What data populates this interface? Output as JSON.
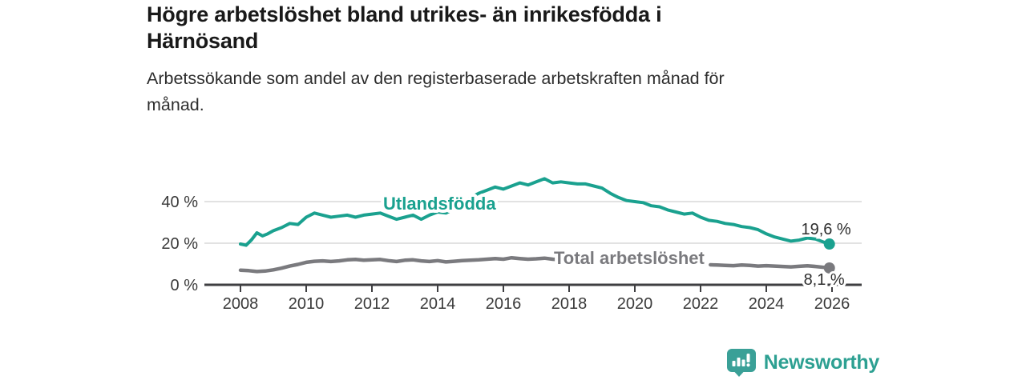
{
  "header": {
    "title_lines": [
      "Högre arbetslöshet bland utrikes- än inrikesfödda i",
      "Härnösand"
    ],
    "subtitle_lines": [
      "Arbetssökande som andel av den registerbaserade arbetskraften månad för",
      "månad."
    ]
  },
  "chart_data": {
    "type": "line",
    "title": "Högre arbetslöshet bland utrikes- än inrikesfödda i Härnösand",
    "subtitle": "Arbetssökande som andel av den registerbaserade arbetskraften månad för månad.",
    "unit": "%",
    "xlim": [
      2006.9,
      2026.9
    ],
    "ylim": [
      0,
      55
    ],
    "grid": "horizontal",
    "legend_position": "inline-labels",
    "x_ticks": [
      "2008",
      "2010",
      "2012",
      "2014",
      "2016",
      "2018",
      "2020",
      "2022",
      "2024",
      "2026"
    ],
    "y_ticks": [
      {
        "value": 0,
        "label": "0 %"
      },
      {
        "value": 20,
        "label": "20 %"
      },
      {
        "value": 40,
        "label": "40 %"
      }
    ],
    "colors": {
      "foreign_born": "#1aa18f",
      "total": "#7a7a7e",
      "grid": "#d8d8d8",
      "axis": "#3f3f42",
      "tick_text": "#3a3a3a",
      "value_text": "#2e2e2e"
    },
    "series": [
      {
        "name": "Utlandsfödda",
        "color": "#1aa18f",
        "end_label": "19,6 %",
        "end_value": 19.6,
        "segments": [
          [
            [
              2008.0,
              19.6
            ],
            [
              2008.17,
              19.0
            ],
            [
              2008.33,
              21.5
            ],
            [
              2008.5,
              25.0
            ],
            [
              2008.67,
              23.5
            ],
            [
              2008.83,
              24.5
            ],
            [
              2009.0,
              26.0
            ],
            [
              2009.25,
              27.5
            ],
            [
              2009.5,
              29.5
            ],
            [
              2009.75,
              29.0
            ],
            [
              2010.0,
              32.5
            ],
            [
              2010.25,
              34.5
            ],
            [
              2010.5,
              33.5
            ],
            [
              2010.75,
              32.5
            ],
            [
              2011.0,
              33.0
            ],
            [
              2011.25,
              33.5
            ],
            [
              2011.5,
              32.5
            ],
            [
              2011.75,
              33.5
            ],
            [
              2012.0,
              34.0
            ],
            [
              2012.25,
              34.5
            ],
            [
              2012.5,
              33.0
            ],
            [
              2012.75,
              31.5
            ],
            [
              2013.0,
              32.5
            ],
            [
              2013.25,
              33.5
            ],
            [
              2013.5,
              31.5
            ],
            [
              2013.75,
              33.5
            ],
            [
              2014.0,
              35.0
            ],
            [
              2014.25,
              34.5
            ],
            [
              2014.5,
              36.5
            ],
            [
              2014.75,
              39.5
            ],
            [
              2015.0,
              42.0
            ],
            [
              2015.25,
              44.0
            ],
            [
              2015.5,
              45.5
            ],
            [
              2015.75,
              47.0
            ],
            [
              2016.0,
              46.0
            ],
            [
              2016.25,
              47.5
            ],
            [
              2016.5,
              49.0
            ],
            [
              2016.75,
              48.0
            ],
            [
              2017.0,
              49.5
            ],
            [
              2017.25,
              51.0
            ],
            [
              2017.5,
              49.0
            ],
            [
              2017.75,
              49.5
            ],
            [
              2018.0,
              49.0
            ],
            [
              2018.25,
              48.5
            ],
            [
              2018.5,
              48.5
            ],
            [
              2018.75,
              47.5
            ],
            [
              2019.0,
              46.5
            ],
            [
              2019.25,
              44.0
            ],
            [
              2019.5,
              42.0
            ],
            [
              2019.75,
              40.5
            ],
            [
              2020.0,
              40.0
            ],
            [
              2020.25,
              39.5
            ],
            [
              2020.5,
              38.0
            ],
            [
              2020.75,
              37.5
            ],
            [
              2021.0,
              36.0
            ],
            [
              2021.25,
              35.0
            ],
            [
              2021.5,
              34.0
            ],
            [
              2021.75,
              34.5
            ],
            [
              2022.0,
              32.5
            ],
            [
              2022.25,
              31.0
            ],
            [
              2022.5,
              30.5
            ],
            [
              2022.75,
              29.5
            ],
            [
              2023.0,
              29.0
            ],
            [
              2023.25,
              28.0
            ],
            [
              2023.5,
              27.5
            ],
            [
              2023.75,
              26.5
            ],
            [
              2024.0,
              24.5
            ],
            [
              2024.25,
              23.0
            ],
            [
              2024.5,
              22.0
            ],
            [
              2024.75,
              21.0
            ],
            [
              2025.0,
              21.5
            ],
            [
              2025.25,
              22.5
            ],
            [
              2025.5,
              22.0
            ],
            [
              2025.75,
              20.5
            ],
            [
              2025.92,
              19.6
            ]
          ]
        ]
      },
      {
        "name": "Total arbetslöshet",
        "color": "#7a7a7e",
        "end_label": "8,1 %",
        "end_value": 8.1,
        "segments": [
          [
            [
              2008.0,
              7.0
            ],
            [
              2008.25,
              6.8
            ],
            [
              2008.5,
              6.4
            ],
            [
              2008.75,
              6.6
            ],
            [
              2009.0,
              7.2
            ],
            [
              2009.25,
              8.0
            ],
            [
              2009.5,
              9.0
            ],
            [
              2009.75,
              9.8
            ],
            [
              2010.0,
              10.8
            ],
            [
              2010.25,
              11.3
            ],
            [
              2010.5,
              11.5
            ],
            [
              2010.75,
              11.2
            ],
            [
              2011.0,
              11.5
            ],
            [
              2011.25,
              12.0
            ],
            [
              2011.5,
              12.2
            ],
            [
              2011.75,
              11.8
            ],
            [
              2012.0,
              12.0
            ],
            [
              2012.25,
              12.2
            ],
            [
              2012.5,
              11.6
            ],
            [
              2012.75,
              11.2
            ],
            [
              2013.0,
              11.8
            ],
            [
              2013.25,
              12.0
            ],
            [
              2013.5,
              11.5
            ],
            [
              2013.75,
              11.2
            ],
            [
              2014.0,
              11.6
            ],
            [
              2014.25,
              11.0
            ],
            [
              2014.5,
              11.3
            ],
            [
              2014.75,
              11.6
            ],
            [
              2015.0,
              11.8
            ],
            [
              2015.25,
              12.0
            ],
            [
              2015.5,
              12.3
            ],
            [
              2015.75,
              12.6
            ],
            [
              2016.0,
              12.3
            ],
            [
              2016.25,
              13.0
            ],
            [
              2016.5,
              12.6
            ],
            [
              2016.75,
              12.3
            ],
            [
              2017.0,
              12.5
            ],
            [
              2017.25,
              12.8
            ],
            [
              2017.5,
              12.3
            ],
            [
              2017.75,
              12.0
            ],
            [
              2018.0,
              11.8
            ]
          ],
          [
            [
              2022.3,
              9.6
            ],
            [
              2022.5,
              9.5
            ],
            [
              2022.75,
              9.3
            ],
            [
              2023.0,
              9.2
            ],
            [
              2023.25,
              9.5
            ],
            [
              2023.5,
              9.3
            ],
            [
              2023.75,
              9.0
            ],
            [
              2024.0,
              9.2
            ],
            [
              2024.25,
              9.0
            ],
            [
              2024.5,
              8.8
            ],
            [
              2024.75,
              8.6
            ],
            [
              2025.0,
              8.9
            ],
            [
              2025.25,
              9.1
            ],
            [
              2025.5,
              8.8
            ],
            [
              2025.75,
              8.4
            ],
            [
              2025.92,
              8.1
            ]
          ]
        ]
      }
    ]
  },
  "footer": {
    "brand": "Newsworthy",
    "brand_color": "#2da092",
    "logo_color": "#3aa097",
    "logo_icon": "bar-chart-exclamation-pin"
  }
}
